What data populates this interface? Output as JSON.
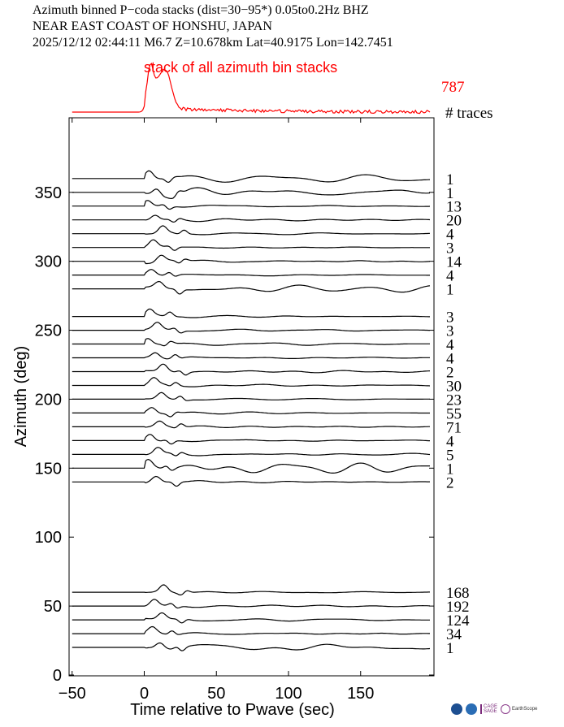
{
  "header": {
    "line1": "Azimuth binned P−coda stacks (dist=30−95*)  0.05to0.2Hz  BHZ",
    "line2": "NEAR EAST COAST OF HONSHU, JAPAN",
    "line3": "2025/12/12  02:44:11  M6.7  Z=10.678km Lat=40.9175 Lon=142.7451"
  },
  "stack": {
    "label": "stack of all azimuth bin stacks",
    "total_traces": "787",
    "color": "#ff0000"
  },
  "traces_header": "# traces",
  "footer_logos": [
    "nsf-logo-icon",
    "noaa-logo-icon",
    "cage-sage-logo-icon",
    "earthscope-logo-icon"
  ],
  "footer_logo_text": {
    "cage": "CAGE",
    "sage": "SAGE",
    "earthscope": "EarthScope"
  },
  "chart_data": {
    "type": "line",
    "xlabel": "Time relative to Pwave (sec)",
    "ylabel": "Azimuth (deg)",
    "xlim": [
      -50,
      200
    ],
    "ylim": [
      0,
      385
    ],
    "xticks": [
      -50,
      0,
      50,
      100,
      150
    ],
    "yticks": [
      0,
      50,
      100,
      150,
      200,
      250,
      300,
      350
    ],
    "tick_labels_x": [
      "−50",
      "0",
      "50",
      "100",
      "150"
    ],
    "tick_labels_y": [
      "0",
      "50",
      "100",
      "150",
      "200",
      "250",
      "300",
      "350"
    ],
    "trace_start": -50,
    "trace_end": 198,
    "series": [
      {
        "azimuth": 360,
        "traces": "1"
      },
      {
        "azimuth": 350,
        "traces": "1"
      },
      {
        "azimuth": 340,
        "traces": "13"
      },
      {
        "azimuth": 330,
        "traces": "20"
      },
      {
        "azimuth": 320,
        "traces": "4"
      },
      {
        "azimuth": 310,
        "traces": "3"
      },
      {
        "azimuth": 300,
        "traces": "14"
      },
      {
        "azimuth": 290,
        "traces": "4"
      },
      {
        "azimuth": 280,
        "traces": "1"
      },
      {
        "azimuth": 260,
        "traces": "3"
      },
      {
        "azimuth": 250,
        "traces": "3"
      },
      {
        "azimuth": 240,
        "traces": "4"
      },
      {
        "azimuth": 230,
        "traces": "4"
      },
      {
        "azimuth": 220,
        "traces": "2"
      },
      {
        "azimuth": 210,
        "traces": "30"
      },
      {
        "azimuth": 200,
        "traces": "23"
      },
      {
        "azimuth": 190,
        "traces": "55"
      },
      {
        "azimuth": 180,
        "traces": "71"
      },
      {
        "azimuth": 170,
        "traces": "4"
      },
      {
        "azimuth": 160,
        "traces": "5"
      },
      {
        "azimuth": 150,
        "traces": "1"
      },
      {
        "azimuth": 140,
        "traces": "2"
      },
      {
        "azimuth": 60,
        "traces": "168"
      },
      {
        "azimuth": 50,
        "traces": "192"
      },
      {
        "azimuth": 40,
        "traces": "124"
      },
      {
        "azimuth": 30,
        "traces": "34"
      },
      {
        "azimuth": 20,
        "traces": "1"
      }
    ]
  }
}
